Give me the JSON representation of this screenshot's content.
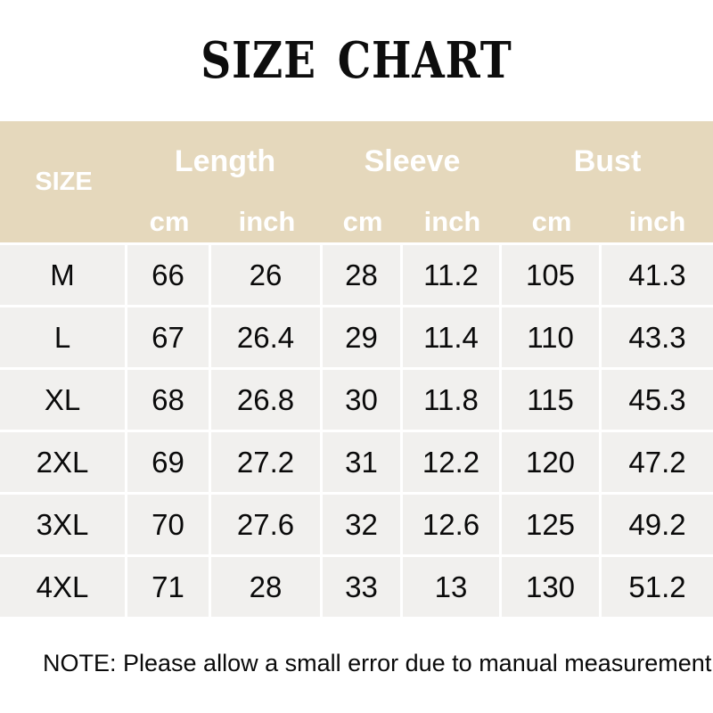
{
  "title": "SIZE CHART",
  "table": {
    "size_label": "SIZE",
    "group_labels": [
      "Length",
      "Sleeve",
      "Bust"
    ],
    "units": [
      "cm",
      "inch",
      "cm",
      "inch",
      "cm",
      "inch"
    ],
    "rows": [
      {
        "size": "M",
        "values": [
          "66",
          "26",
          "28",
          "11.2",
          "105",
          "41.3"
        ]
      },
      {
        "size": "L",
        "values": [
          "67",
          "26.4",
          "29",
          "11.4",
          "110",
          "43.3"
        ]
      },
      {
        "size": "XL",
        "values": [
          "68",
          "26.8",
          "30",
          "11.8",
          "115",
          "45.3"
        ]
      },
      {
        "size": "2XL",
        "values": [
          "69",
          "27.2",
          "31",
          "12.2",
          "120",
          "47.2"
        ]
      },
      {
        "size": "3XL",
        "values": [
          "70",
          "27.6",
          "32",
          "12.6",
          "125",
          "49.2"
        ]
      },
      {
        "size": "4XL",
        "values": [
          "71",
          "28",
          "33",
          "13",
          "130",
          "51.2"
        ]
      }
    ]
  },
  "note": "NOTE: Please allow a small error due to manual measurement.",
  "colors": {
    "header_bg": "#e5d8bc",
    "row_bg": "#f1f0ee",
    "separator": "#ffffff",
    "header_text": "#ffffff",
    "body_text": "#0a0a0a"
  },
  "chart_data": {
    "type": "table",
    "title": "SIZE CHART",
    "column_groups": [
      "Length",
      "Sleeve",
      "Bust"
    ],
    "columns": [
      "SIZE",
      "Length cm",
      "Length inch",
      "Sleeve cm",
      "Sleeve inch",
      "Bust cm",
      "Bust inch"
    ],
    "rows": [
      [
        "M",
        66,
        26,
        28,
        11.2,
        105,
        41.3
      ],
      [
        "L",
        67,
        26.4,
        29,
        11.4,
        110,
        43.3
      ],
      [
        "XL",
        68,
        26.8,
        30,
        11.8,
        115,
        45.3
      ],
      [
        "2XL",
        69,
        27.2,
        31,
        12.2,
        120,
        47.2
      ],
      [
        "3XL",
        70,
        27.6,
        32,
        12.6,
        125,
        49.2
      ],
      [
        "4XL",
        71,
        28,
        33,
        13,
        130,
        51.2
      ]
    ],
    "note": "NOTE: Please allow a small error due to manual measurement."
  }
}
